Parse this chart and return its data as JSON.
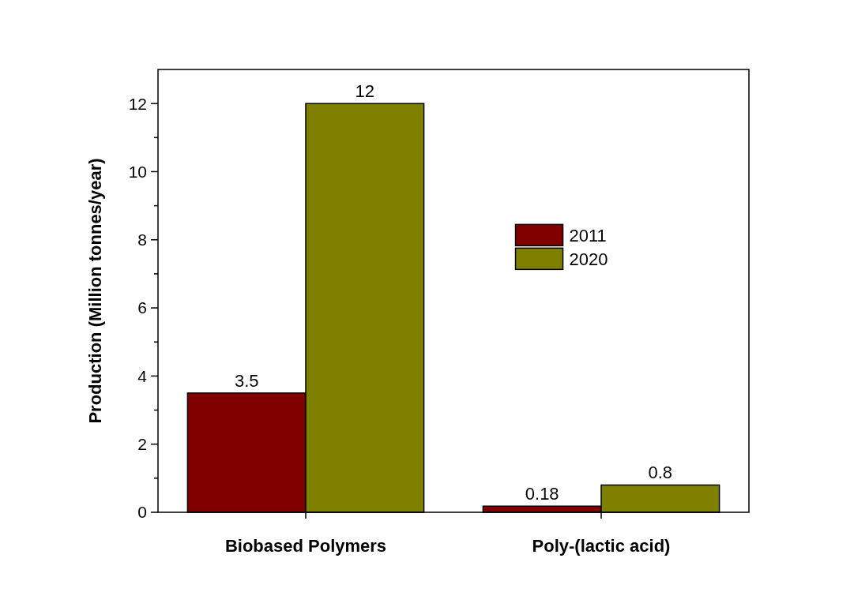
{
  "chart_data": {
    "type": "bar",
    "ylabel": "Production (Million tonnes/year)",
    "categories": [
      "Biobased Polymers",
      "Poly-(lactic acid)"
    ],
    "series": [
      {
        "name": "2011",
        "color": "#800000",
        "values": [
          3.5,
          0.18
        ]
      },
      {
        "name": "2020",
        "color": "#808000",
        "values": [
          12,
          0.8
        ]
      }
    ],
    "ylim": [
      0,
      13
    ],
    "yticks": [
      0,
      {
        "value": 1,
        "label": null
      },
      2,
      {
        "value": 3,
        "label": null
      },
      4,
      {
        "value": 5,
        "label": null
      },
      6,
      {
        "value": 7,
        "label": null
      },
      8,
      {
        "value": 9,
        "label": null
      },
      10,
      {
        "value": 11,
        "label": null
      },
      12
    ],
    "data_labels": true,
    "legend": "right",
    "grid": false
  }
}
